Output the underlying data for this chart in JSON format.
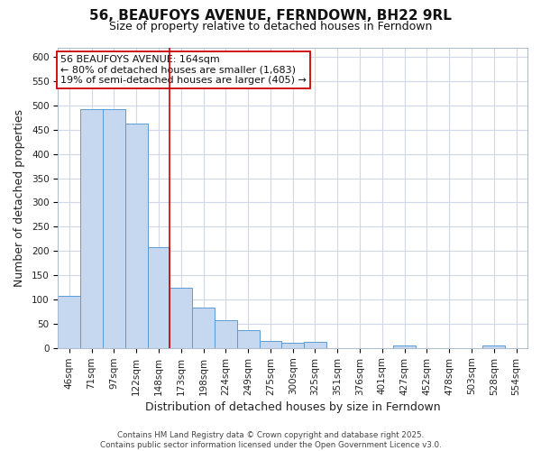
{
  "title": "56, BEAUFOYS AVENUE, FERNDOWN, BH22 9RL",
  "subtitle": "Size of property relative to detached houses in Ferndown",
  "xlabel": "Distribution of detached houses by size in Ferndown",
  "ylabel": "Number of detached properties",
  "bar_labels": [
    "46sqm",
    "71sqm",
    "97sqm",
    "122sqm",
    "148sqm",
    "173sqm",
    "198sqm",
    "224sqm",
    "249sqm",
    "275sqm",
    "300sqm",
    "325sqm",
    "351sqm",
    "376sqm",
    "401sqm",
    "427sqm",
    "452sqm",
    "478sqm",
    "503sqm",
    "528sqm",
    "554sqm"
  ],
  "bar_values": [
    107,
    493,
    493,
    462,
    207,
    125,
    84,
    57,
    37,
    15,
    10,
    12,
    0,
    0,
    0,
    5,
    0,
    0,
    0,
    5,
    0
  ],
  "bar_color": "#c5d8f0",
  "bar_edge_color": "#5b9bd5",
  "bg_color": "#ffffff",
  "plot_bg_color": "#ffffff",
  "grid_color": "#d0d8e8",
  "vline_x": 4.5,
  "vline_color": "#cc0000",
  "annotation_text": "56 BEAUFOYS AVENUE: 164sqm\n← 80% of detached houses are smaller (1,683)\n19% of semi-detached houses are larger (405) →",
  "annotation_box_color": "#ffffff",
  "annotation_edge_color": "#cc0000",
  "ylim": [
    0,
    620
  ],
  "yticks": [
    0,
    50,
    100,
    150,
    200,
    250,
    300,
    350,
    400,
    450,
    500,
    550,
    600
  ],
  "footnote": "Contains HM Land Registry data © Crown copyright and database right 2025.\nContains public sector information licensed under the Open Government Licence v3.0.",
  "title_fontsize": 11,
  "subtitle_fontsize": 9,
  "axis_label_fontsize": 9,
  "tick_fontsize": 7.5,
  "annotation_fontsize": 8
}
